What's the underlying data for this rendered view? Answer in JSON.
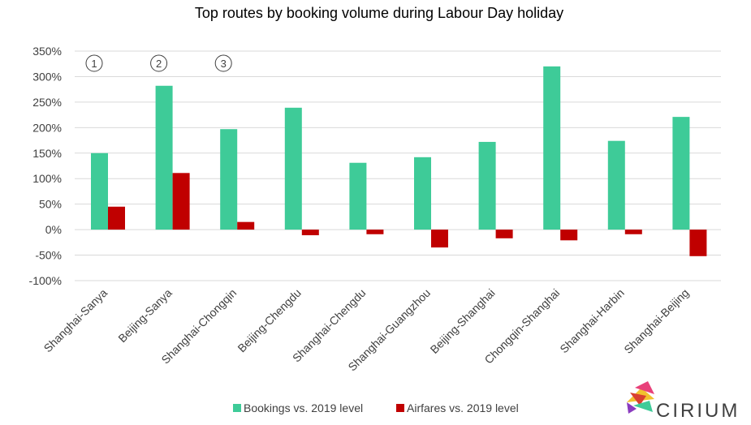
{
  "chart_data": {
    "type": "bar",
    "title": "Top routes by booking volume during Labour Day holiday",
    "categories": [
      "Shanghai-Sanya",
      "Beijing-Sanya",
      "Shanghai-Chongqin",
      "Beijing-Chengdu",
      "Shanghai-Chengdu",
      "Shanghai-Guangzhou",
      "Beijing-Shanghai",
      "Chongqin-Shanghai",
      "Shanghai-Harbin",
      "Shanghai-Beijing"
    ],
    "series": [
      {
        "name": "Bookings vs. 2019 level",
        "color": "#3ecb98",
        "values": [
          150,
          282,
          197,
          239,
          131,
          142,
          172,
          320,
          174,
          221
        ]
      },
      {
        "name": "Airfares vs. 2019 level",
        "color": "#c00000",
        "values": [
          45,
          111,
          15,
          -11,
          -9,
          -35,
          -17,
          -21,
          -9,
          -52
        ]
      }
    ],
    "ylim": [
      -100,
      350
    ],
    "yticks": [
      -100,
      -50,
      0,
      50,
      100,
      150,
      200,
      250,
      300,
      350
    ],
    "ytick_suffix": "%",
    "grid": true,
    "legend_position": "bottom",
    "rank_markers": [
      "1",
      "2",
      "3"
    ]
  },
  "brand": {
    "name": "CIRIUM",
    "logo_icon": "cirium-logo-icon"
  }
}
